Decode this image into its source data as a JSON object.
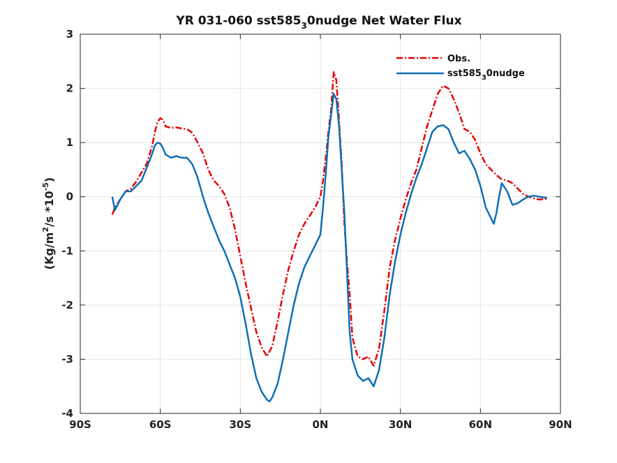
{
  "chart_data": {
    "type": "line",
    "title_parts": [
      "YR 031-060 sst585",
      "3",
      "0nudge  Net Water Flux"
    ],
    "ylabel_parts": [
      "(Kg/m",
      "2",
      "/s *10",
      "-5",
      ")"
    ],
    "xlabel": "",
    "xlim": [
      -90,
      90
    ],
    "ylim": [
      -4,
      3
    ],
    "x_ticks": [
      -90,
      -60,
      -30,
      0,
      30,
      60,
      90
    ],
    "x_tick_labels": [
      "90S",
      "60S",
      "30S",
      "0N",
      "30N",
      "60N",
      "90N"
    ],
    "y_ticks": [
      3,
      2,
      1,
      0,
      -1,
      -2,
      -3,
      -4
    ],
    "y_tick_labels": [
      "3",
      "2",
      "1",
      "0",
      "-1",
      "-2",
      "-3",
      "-4"
    ],
    "grid": true,
    "legend_placement": "top-right",
    "series": [
      {
        "name_parts": [
          "Obs."
        ],
        "color": "#e60000",
        "dash": "dash-dot",
        "x": [
          -78,
          -77,
          -75,
          -73,
          -71,
          -69,
          -67,
          -65,
          -63,
          -62,
          -61,
          -60,
          -59,
          -58,
          -56,
          -54,
          -52,
          -50,
          -48,
          -46,
          -44,
          -42,
          -40,
          -38,
          -36,
          -34,
          -32,
          -30,
          -28,
          -26,
          -24,
          -22,
          -20,
          -18,
          -16,
          -14,
          -12,
          -10,
          -8,
          -6,
          -4,
          -2,
          0,
          1,
          2,
          3,
          4,
          5,
          6,
          7,
          8,
          9,
          10,
          11,
          12,
          14,
          16,
          18,
          20,
          22,
          24,
          26,
          28,
          30,
          32,
          34,
          36,
          38,
          40,
          42,
          44,
          46,
          48,
          50,
          52,
          54,
          56,
          58,
          60,
          62,
          64,
          66,
          68,
          70,
          72,
          74,
          76,
          78,
          80,
          82,
          85
        ],
        "y": [
          -0.33,
          -0.2,
          -0.05,
          0.1,
          0.15,
          0.28,
          0.45,
          0.62,
          0.95,
          1.2,
          1.38,
          1.45,
          1.42,
          1.3,
          1.27,
          1.28,
          1.26,
          1.25,
          1.18,
          1.0,
          0.8,
          0.5,
          0.3,
          0.2,
          0.05,
          -0.2,
          -0.6,
          -1.1,
          -1.6,
          -2.05,
          -2.5,
          -2.78,
          -2.95,
          -2.75,
          -2.3,
          -1.8,
          -1.35,
          -1.0,
          -0.7,
          -0.5,
          -0.35,
          -0.2,
          0.0,
          0.3,
          0.7,
          1.2,
          1.6,
          2.3,
          2.15,
          1.4,
          0.6,
          -0.5,
          -1.2,
          -1.8,
          -2.6,
          -2.95,
          -3.0,
          -2.95,
          -3.12,
          -2.8,
          -2.1,
          -1.3,
          -0.8,
          -0.4,
          -0.05,
          0.25,
          0.5,
          0.9,
          1.3,
          1.6,
          1.9,
          2.05,
          2.0,
          1.8,
          1.55,
          1.25,
          1.2,
          1.05,
          0.8,
          0.6,
          0.5,
          0.4,
          0.32,
          0.3,
          0.25,
          0.15,
          0.05,
          0.0,
          -0.03,
          -0.05,
          -0.04
        ]
      },
      {
        "name_parts": [
          "sst585",
          "3",
          "0nudge"
        ],
        "color": "#0f6eb4",
        "dash": "solid",
        "x": [
          -78,
          -77,
          -76,
          -75,
          -73,
          -71,
          -69,
          -67,
          -65,
          -63,
          -62,
          -61,
          -60,
          -59,
          -58,
          -56,
          -54,
          -52,
          -50,
          -48,
          -46,
          -44,
          -42,
          -40,
          -38,
          -36,
          -34,
          -32,
          -30,
          -28,
          -26,
          -24,
          -22,
          -20,
          -19,
          -18,
          -16,
          -14,
          -12,
          -10,
          -8,
          -6,
          -4,
          -2,
          0,
          1,
          2,
          3,
          4,
          5,
          6,
          7,
          8,
          9,
          10,
          11,
          12,
          14,
          16,
          18,
          20,
          22,
          24,
          26,
          28,
          30,
          32,
          34,
          36,
          38,
          40,
          42,
          44,
          46,
          48,
          50,
          52,
          54,
          56,
          58,
          60,
          62,
          64,
          65,
          66,
          67,
          68,
          70,
          72,
          74,
          76,
          78,
          80,
          82,
          85
        ],
        "y": [
          0.0,
          -0.25,
          -0.15,
          -0.05,
          0.1,
          0.1,
          0.2,
          0.3,
          0.55,
          0.8,
          0.95,
          1.0,
          0.98,
          0.9,
          0.78,
          0.72,
          0.75,
          0.72,
          0.72,
          0.6,
          0.35,
          0.0,
          -0.3,
          -0.55,
          -0.8,
          -1.0,
          -1.25,
          -1.5,
          -1.85,
          -2.35,
          -2.9,
          -3.35,
          -3.6,
          -3.75,
          -3.78,
          -3.7,
          -3.45,
          -3.0,
          -2.5,
          -2.0,
          -1.6,
          -1.3,
          -1.1,
          -0.9,
          -0.7,
          -0.2,
          0.4,
          1.1,
          1.5,
          1.9,
          1.8,
          1.3,
          0.5,
          -0.3,
          -1.4,
          -2.5,
          -3.0,
          -3.3,
          -3.4,
          -3.35,
          -3.5,
          -3.2,
          -2.6,
          -1.8,
          -1.2,
          -0.7,
          -0.3,
          0.05,
          0.35,
          0.6,
          0.9,
          1.2,
          1.3,
          1.32,
          1.25,
          1.0,
          0.8,
          0.85,
          0.7,
          0.5,
          0.2,
          -0.2,
          -0.4,
          -0.5,
          -0.3,
          0.0,
          0.25,
          0.1,
          -0.15,
          -0.12,
          -0.05,
          0.0,
          0.02,
          0.0,
          -0.02
        ]
      }
    ]
  }
}
